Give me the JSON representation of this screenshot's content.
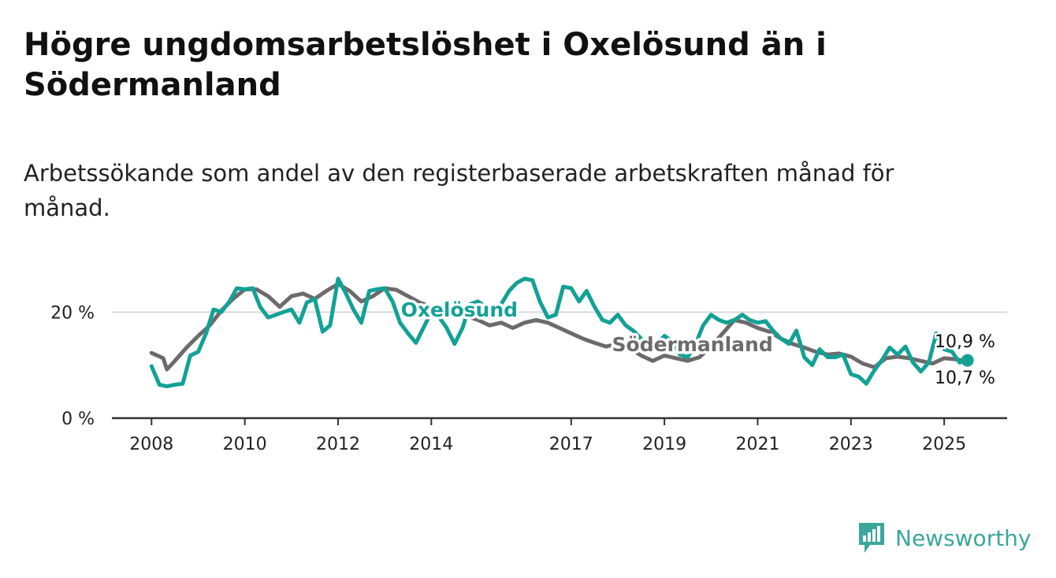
{
  "header": {
    "title": "Högre ungdomsarbetslöshet i Oxelösund än i Södermanland",
    "subtitle": "Arbetssökande som andel av den registerbaserade arbetskraften månad för månad."
  },
  "brand": {
    "name": "Newsworthy",
    "logo_icon": "bar-chart-badge-icon",
    "color": "#3aa79b"
  },
  "chart_data": {
    "type": "line",
    "x_tick_labels": [
      "2008",
      "2010",
      "2012",
      "2014",
      "2017",
      "2019",
      "2021",
      "2023",
      "2025"
    ],
    "x_tick_values": [
      2008.0,
      2010.0,
      2012.0,
      2014.0,
      2017.0,
      2019.0,
      2021.0,
      2023.0,
      2025.0
    ],
    "y_tick_labels": [
      "0 %",
      "20 %"
    ],
    "y_tick_values": [
      0,
      20
    ],
    "xlim": [
      2007.15,
      2026.35
    ],
    "ylim": [
      0,
      30
    ],
    "grid": true,
    "series": [
      {
        "name": "Södermanland",
        "color": "#6e6a6c",
        "end_label": "10,7 %",
        "points": [
          [
            2008.0,
            12.3
          ],
          [
            2008.25,
            11.3
          ],
          [
            2008.33,
            9.2
          ],
          [
            2008.5,
            10.8
          ],
          [
            2008.75,
            13.3
          ],
          [
            2009.0,
            15.5
          ],
          [
            2009.25,
            17.5
          ],
          [
            2009.5,
            20.3
          ],
          [
            2009.75,
            22.5
          ],
          [
            2010.0,
            24.3
          ],
          [
            2010.25,
            24.3
          ],
          [
            2010.5,
            23.0
          ],
          [
            2010.75,
            21.0
          ],
          [
            2011.0,
            23.0
          ],
          [
            2011.25,
            23.5
          ],
          [
            2011.5,
            22.5
          ],
          [
            2011.75,
            24.0
          ],
          [
            2012.0,
            25.3
          ],
          [
            2012.25,
            24.0
          ],
          [
            2012.5,
            22.0
          ],
          [
            2012.75,
            23.0
          ],
          [
            2013.0,
            24.5
          ],
          [
            2013.25,
            24.2
          ],
          [
            2013.5,
            23.0
          ],
          [
            2013.75,
            21.8
          ],
          [
            2014.0,
            21.0
          ],
          [
            2014.5,
            20.0
          ],
          [
            2015.0,
            18.5
          ],
          [
            2015.25,
            17.5
          ],
          [
            2015.5,
            18.0
          ],
          [
            2015.75,
            17.0
          ],
          [
            2016.0,
            18.0
          ],
          [
            2016.25,
            18.5
          ],
          [
            2016.5,
            18.0
          ],
          [
            2016.75,
            17.0
          ],
          [
            2017.0,
            16.0
          ],
          [
            2017.25,
            15.0
          ],
          [
            2017.5,
            14.2
          ],
          [
            2017.75,
            13.5
          ],
          [
            2018.0,
            14.0
          ],
          [
            2018.25,
            13.2
          ],
          [
            2018.5,
            11.8
          ],
          [
            2018.75,
            10.8
          ],
          [
            2019.0,
            11.8
          ],
          [
            2019.25,
            11.3
          ],
          [
            2019.5,
            10.8
          ],
          [
            2019.75,
            11.5
          ],
          [
            2020.0,
            13.5
          ],
          [
            2020.25,
            16.0
          ],
          [
            2020.5,
            18.5
          ],
          [
            2020.75,
            18.0
          ],
          [
            2021.0,
            17.0
          ],
          [
            2021.25,
            16.3
          ],
          [
            2021.5,
            15.0
          ],
          [
            2021.75,
            14.0
          ],
          [
            2022.0,
            13.3
          ],
          [
            2022.25,
            12.5
          ],
          [
            2022.5,
            12.0
          ],
          [
            2022.75,
            12.2
          ],
          [
            2023.0,
            11.6
          ],
          [
            2023.25,
            10.3
          ],
          [
            2023.5,
            9.6
          ],
          [
            2023.75,
            11.3
          ],
          [
            2024.0,
            11.6
          ],
          [
            2024.25,
            11.3
          ],
          [
            2024.5,
            10.8
          ],
          [
            2024.75,
            10.3
          ],
          [
            2025.0,
            11.3
          ],
          [
            2025.25,
            11.1
          ],
          [
            2025.5,
            10.7
          ]
        ]
      },
      {
        "name": "Oxelösund",
        "color": "#13a195",
        "end_label": "10,9 %",
        "points": [
          [
            2008.0,
            9.8
          ],
          [
            2008.17,
            6.3
          ],
          [
            2008.33,
            6.0
          ],
          [
            2008.5,
            6.3
          ],
          [
            2008.67,
            6.5
          ],
          [
            2008.83,
            11.8
          ],
          [
            2009.0,
            12.5
          ],
          [
            2009.17,
            16.0
          ],
          [
            2009.33,
            20.5
          ],
          [
            2009.5,
            20.0
          ],
          [
            2009.67,
            22.0
          ],
          [
            2009.83,
            24.5
          ],
          [
            2010.0,
            24.3
          ],
          [
            2010.17,
            24.5
          ],
          [
            2010.33,
            21.0
          ],
          [
            2010.5,
            19.0
          ],
          [
            2010.67,
            19.5
          ],
          [
            2010.83,
            20.0
          ],
          [
            2011.0,
            20.5
          ],
          [
            2011.17,
            18.0
          ],
          [
            2011.33,
            21.8
          ],
          [
            2011.5,
            22.5
          ],
          [
            2011.67,
            16.3
          ],
          [
            2011.83,
            17.5
          ],
          [
            2012.0,
            26.3
          ],
          [
            2012.17,
            23.5
          ],
          [
            2012.33,
            20.5
          ],
          [
            2012.5,
            18.0
          ],
          [
            2012.67,
            24.0
          ],
          [
            2012.83,
            24.3
          ],
          [
            2013.0,
            24.5
          ],
          [
            2013.17,
            22.0
          ],
          [
            2013.33,
            18.0
          ],
          [
            2013.5,
            16.0
          ],
          [
            2013.67,
            14.2
          ],
          [
            2013.83,
            17.0
          ],
          [
            2014.0,
            20.0
          ],
          [
            2014.17,
            19.0
          ],
          [
            2014.33,
            17.0
          ],
          [
            2014.5,
            14.0
          ],
          [
            2014.67,
            17.0
          ],
          [
            2014.83,
            21.5
          ],
          [
            2015.0,
            22.0
          ],
          [
            2015.17,
            21.0
          ],
          [
            2015.33,
            19.5
          ],
          [
            2015.5,
            21.5
          ],
          [
            2015.67,
            24.0
          ],
          [
            2015.83,
            25.5
          ],
          [
            2016.0,
            26.3
          ],
          [
            2016.17,
            26.0
          ],
          [
            2016.33,
            22.0
          ],
          [
            2016.5,
            19.0
          ],
          [
            2016.67,
            19.5
          ],
          [
            2016.83,
            24.8
          ],
          [
            2017.0,
            24.5
          ],
          [
            2017.17,
            22.0
          ],
          [
            2017.33,
            24.0
          ],
          [
            2017.5,
            21.0
          ],
          [
            2017.67,
            18.5
          ],
          [
            2017.83,
            18.0
          ],
          [
            2018.0,
            19.5
          ],
          [
            2018.17,
            17.5
          ],
          [
            2018.33,
            16.5
          ],
          [
            2018.5,
            15.0
          ],
          [
            2018.67,
            13.0
          ],
          [
            2018.83,
            14.0
          ],
          [
            2019.0,
            15.5
          ],
          [
            2019.17,
            14.5
          ],
          [
            2019.33,
            12.0
          ],
          [
            2019.5,
            11.5
          ],
          [
            2019.67,
            14.0
          ],
          [
            2019.83,
            17.5
          ],
          [
            2020.0,
            19.5
          ],
          [
            2020.17,
            18.5
          ],
          [
            2020.33,
            18.0
          ],
          [
            2020.5,
            18.5
          ],
          [
            2020.67,
            19.5
          ],
          [
            2020.83,
            18.5
          ],
          [
            2021.0,
            18.0
          ],
          [
            2021.17,
            18.3
          ],
          [
            2021.33,
            16.5
          ],
          [
            2021.5,
            15.0
          ],
          [
            2021.67,
            14.0
          ],
          [
            2021.83,
            16.5
          ],
          [
            2022.0,
            11.5
          ],
          [
            2022.17,
            10.0
          ],
          [
            2022.33,
            13.0
          ],
          [
            2022.5,
            11.5
          ],
          [
            2022.67,
            11.5
          ],
          [
            2022.83,
            12.0
          ],
          [
            2023.0,
            8.3
          ],
          [
            2023.17,
            7.8
          ],
          [
            2023.33,
            6.5
          ],
          [
            2023.5,
            9.0
          ],
          [
            2023.67,
            11.0
          ],
          [
            2023.83,
            13.3
          ],
          [
            2024.0,
            12.0
          ],
          [
            2024.17,
            13.5
          ],
          [
            2024.33,
            10.5
          ],
          [
            2024.5,
            8.8
          ],
          [
            2024.67,
            10.5
          ],
          [
            2024.83,
            16.0
          ],
          [
            2025.0,
            13.0
          ],
          [
            2025.17,
            12.5
          ],
          [
            2025.33,
            10.5
          ],
          [
            2025.5,
            10.9
          ]
        ]
      }
    ]
  }
}
